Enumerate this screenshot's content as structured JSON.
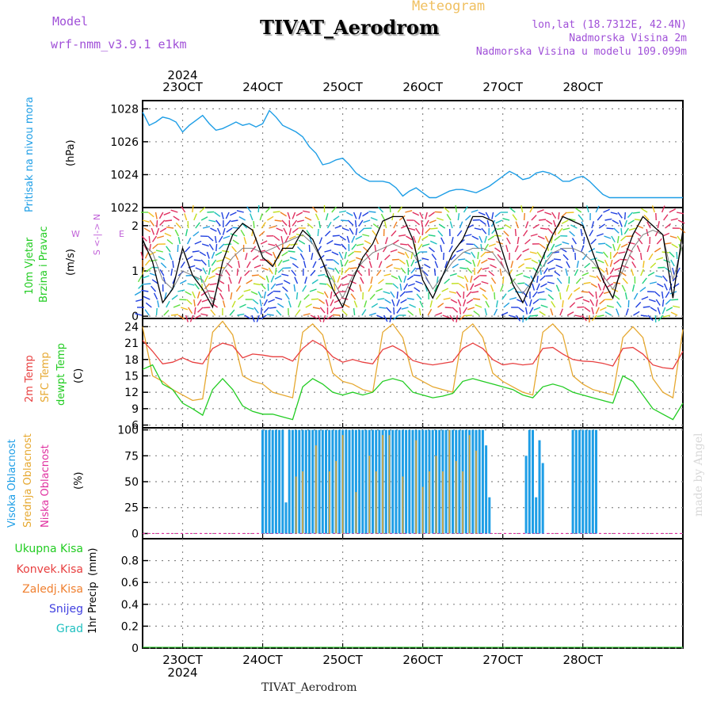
{
  "header": {
    "model_label": "Model",
    "model_name": "wrf-nmm_v3.9.1 e1km",
    "station_title": "TIVAT_Aerodrom",
    "meteogram_label": "Meteogram",
    "lonlat": "lon,lat (18.7312E, 42.4N)",
    "elevation": "Nadmorska Visina 2m",
    "model_elevation": "Nadmorska Visina u modelu 109.099m"
  },
  "footer": {
    "station": "TIVAT_Aerodrom",
    "credit": "made by Angel"
  },
  "time_axis": {
    "year": "2024",
    "dates": [
      "23OCT",
      "24OCT",
      "25OCT",
      "26OCT",
      "27OCT",
      "28OCT"
    ],
    "start_hour": 0,
    "end_hour": 162
  },
  "colors": {
    "pressure": "#1e9ee6",
    "wind_speed": "#000000",
    "gust": "#e6304a",
    "temp2m": "#e84040",
    "sfc_temp": "#e6a830",
    "dewpt": "#22cc22",
    "high_cloud": "#1e9ee6",
    "mid_cloud": "#e6a830",
    "low_cloud": "#e030a0",
    "total_precip": "#22cc22",
    "conv_precip": "#e84040",
    "frozen_precip": "#f08030",
    "snow": "#4040e0",
    "hail": "#20c0c0"
  },
  "chart_data": [
    {
      "type": "line",
      "title": "",
      "ylabel": "Pritisak na nivou mora",
      "units": "(hPa)",
      "ylim": [
        1022,
        1028.5
      ],
      "yticks": [
        1022,
        1024,
        1026,
        1028
      ],
      "x": [
        0,
        2,
        4,
        6,
        8,
        10,
        12,
        14,
        16,
        18,
        20,
        22,
        24,
        26,
        28,
        30,
        32,
        34,
        36,
        38,
        40,
        42,
        44,
        46,
        48,
        50,
        52,
        54,
        56,
        58,
        60,
        62,
        64,
        66,
        68,
        70,
        72,
        74,
        76,
        78,
        80,
        82,
        84,
        86,
        88,
        90,
        92,
        94,
        96,
        98,
        100,
        102,
        104,
        106,
        108,
        110,
        112,
        114,
        116,
        118,
        120,
        122,
        124,
        126,
        128,
        130,
        132,
        134,
        136,
        138,
        140,
        142,
        144,
        146,
        148,
        150,
        152,
        154,
        156,
        158,
        160,
        162
      ],
      "series": [
        {
          "name": "",
          "values": [
            1027.8,
            1027.0,
            1027.2,
            1027.5,
            1027.4,
            1027.2,
            1026.6,
            1027.0,
            1027.3,
            1027.6,
            1027.1,
            1026.7,
            1026.8,
            1027.0,
            1027.2,
            1027.0,
            1027.1,
            1026.9,
            1027.1,
            1027.9,
            1027.5,
            1027.0,
            1026.8,
            1026.6,
            1026.3,
            1025.7,
            1025.3,
            1024.6,
            1024.7,
            1024.9,
            1025.0,
            1024.6,
            1024.1,
            1023.8,
            1023.6,
            1023.6,
            1023.6,
            1023.5,
            1023.2,
            1022.7,
            1023.0,
            1023.2,
            1022.9,
            1022.6,
            1022.6,
            1022.8,
            1023.0,
            1023.1,
            1023.1,
            1023.0,
            1022.9,
            1023.1,
            1023.3,
            1023.6,
            1023.9,
            1024.2,
            1024.0,
            1023.7,
            1023.8,
            1024.1,
            1024.2,
            1024.1,
            1023.9,
            1023.6,
            1023.6,
            1023.8,
            1023.9,
            1023.6,
            1023.2,
            1022.8,
            1022.6,
            1022.6,
            1022.6,
            1022.6,
            1022.6,
            1022.6,
            1022.6,
            1022.6,
            1022.6,
            1022.6,
            1022.6,
            1022.6
          ]
        }
      ]
    },
    {
      "type": "line",
      "ylabel": "10m Vjetar Brzina i Pravac",
      "units": "(m/s)",
      "ylim": [
        -0.05,
        2.4
      ],
      "yticks": [
        0,
        1,
        2
      ],
      "compass": {
        "n": "N",
        "s": "S",
        "e": "E",
        "w": "W"
      },
      "x": [
        0,
        3,
        6,
        9,
        12,
        15,
        18,
        21,
        24,
        27,
        30,
        33,
        36,
        39,
        42,
        45,
        48,
        51,
        54,
        57,
        60,
        63,
        66,
        69,
        72,
        75,
        78,
        81,
        84,
        87,
        90,
        93,
        96,
        99,
        102,
        105,
        108,
        111,
        114,
        117,
        120,
        123,
        126,
        129,
        132,
        135,
        138,
        141,
        144,
        147,
        150,
        153,
        156,
        159,
        162
      ],
      "series": [
        {
          "name": "",
          "values": [
            1.7,
            1.2,
            0.3,
            0.6,
            1.5,
            0.9,
            0.6,
            0.2,
            1.2,
            1.8,
            2.05,
            1.9,
            1.3,
            1.1,
            1.5,
            1.5,
            1.9,
            1.7,
            1.2,
            0.6,
            0.2,
            0.8,
            1.3,
            1.6,
            2.1,
            2.2,
            2.2,
            1.7,
            0.8,
            0.4,
            0.9,
            1.4,
            1.7,
            2.2,
            2.2,
            2.1,
            1.4,
            0.7,
            0.3,
            0.8,
            1.3,
            1.8,
            2.2,
            2.1,
            2.0,
            1.4,
            0.8,
            0.4,
            1.2,
            1.8,
            2.2,
            2.0,
            1.8,
            0.4,
            1.9
          ]
        },
        {
          "name": "",
          "values": [
            1.6,
            1.4,
            0.8,
            0.6,
            1.0,
            0.9,
            0.8,
            0.3,
            1.0,
            1.3,
            1.5,
            1.5,
            1.4,
            1.5,
            1.6,
            1.7,
            1.8,
            1.6,
            1.2,
            0.8,
            0.4,
            0.9,
            1.2,
            1.4,
            1.5,
            1.6,
            1.5,
            1.4,
            1.0,
            0.6,
            0.9,
            1.2,
            1.4,
            1.5,
            1.5,
            1.4,
            1.1,
            0.8,
            0.5,
            0.8,
            1.1,
            1.4,
            1.5,
            1.5,
            1.4,
            1.2,
            0.9,
            0.6,
            1.0,
            1.5,
            1.8,
            1.9,
            1.8,
            0.8,
            1.6
          ]
        }
      ]
    },
    {
      "type": "line",
      "ylabel": "2m Temp / SFC Temp / dewpt Temp",
      "units": "(C)",
      "ylim": [
        5.5,
        25.5
      ],
      "yticks": [
        6,
        9,
        12,
        15,
        18,
        21,
        24
      ],
      "x": [
        0,
        3,
        6,
        9,
        12,
        15,
        18,
        21,
        24,
        27,
        30,
        33,
        36,
        39,
        42,
        45,
        48,
        51,
        54,
        57,
        60,
        63,
        66,
        69,
        72,
        75,
        78,
        81,
        84,
        87,
        90,
        93,
        96,
        99,
        102,
        105,
        108,
        111,
        114,
        117,
        120,
        123,
        126,
        129,
        132,
        135,
        138,
        141,
        144,
        147,
        150,
        153,
        156,
        159,
        162
      ],
      "series": [
        {
          "name": "2m Temp",
          "values": [
            21.5,
            19.5,
            17.2,
            17.5,
            18.3,
            17.5,
            17.2,
            20.0,
            21.0,
            20.5,
            18.3,
            19.0,
            18.8,
            18.5,
            18.5,
            17.7,
            20.0,
            21.5,
            20.5,
            18.5,
            17.5,
            18.0,
            17.5,
            17.2,
            19.8,
            20.5,
            19.5,
            17.8,
            17.3,
            17.0,
            17.3,
            17.6,
            20.0,
            21.0,
            20.0,
            18.0,
            17.0,
            17.3,
            17.0,
            17.2,
            20.0,
            20.2,
            19.0,
            18.0,
            17.7,
            17.6,
            17.3,
            16.8,
            20.0,
            20.2,
            19.0,
            17.0,
            16.5,
            16.3,
            19.5
          ]
        },
        {
          "name": "SFC Temp",
          "values": [
            24.0,
            15.0,
            14.0,
            12.5,
            11.5,
            10.5,
            10.8,
            23.0,
            25.0,
            22.5,
            15.0,
            14.0,
            13.5,
            12.0,
            11.5,
            11.0,
            23.0,
            24.5,
            22.5,
            15.5,
            14.0,
            13.5,
            12.5,
            12.0,
            23.0,
            24.5,
            22.0,
            15.0,
            14.0,
            13.0,
            12.5,
            12.0,
            23.0,
            24.5,
            22.0,
            15.5,
            14.0,
            13.0,
            12.0,
            11.5,
            23.0,
            24.5,
            22.5,
            15.0,
            13.5,
            12.5,
            12.0,
            11.5,
            22.0,
            24.0,
            22.0,
            14.5,
            12.0,
            11.0,
            23.5
          ]
        },
        {
          "name": "dewpt Temp",
          "values": [
            16.2,
            17.0,
            13.5,
            12.5,
            10.0,
            9.0,
            7.8,
            12.5,
            14.5,
            12.5,
            9.5,
            8.5,
            8.0,
            8.0,
            7.5,
            7.0,
            13.0,
            14.5,
            13.5,
            12.0,
            11.5,
            12.0,
            11.5,
            12.0,
            14.0,
            14.5,
            14.0,
            12.0,
            11.5,
            11.0,
            11.3,
            11.8,
            14.0,
            14.5,
            14.0,
            13.5,
            13.0,
            12.5,
            11.5,
            11.0,
            13.0,
            13.5,
            13.0,
            12.0,
            11.5,
            11.0,
            10.5,
            10.0,
            15.0,
            14.0,
            11.5,
            9.0,
            8.0,
            7.0,
            10.0
          ]
        }
      ]
    },
    {
      "type": "bar",
      "ylabel": "Visoka Oblacnost / Srednja Oblacnost / Niska Oblacnost",
      "units": "(%)",
      "ylim": [
        -5,
        102
      ],
      "yticks": [
        0,
        25,
        50,
        75,
        100
      ],
      "high_cloud": {
        "x": [
          36,
          37,
          38,
          39,
          40,
          41,
          42,
          43,
          44,
          45,
          46,
          47,
          48,
          49,
          50,
          51,
          52,
          53,
          54,
          55,
          56,
          57,
          58,
          59,
          60,
          61,
          62,
          63,
          64,
          65,
          66,
          67,
          68,
          69,
          70,
          71,
          72,
          73,
          74,
          75,
          76,
          77,
          78,
          79,
          80,
          81,
          82,
          83,
          84,
          85,
          86,
          87,
          88,
          89,
          90,
          91,
          92,
          93,
          94,
          95,
          96,
          97,
          98,
          99,
          100,
          101,
          102,
          103,
          104,
          115,
          116,
          117,
          118,
          119,
          120,
          121,
          122,
          129,
          130,
          131,
          132,
          133,
          134,
          135,
          136
        ],
        "values": [
          100,
          100,
          100,
          100,
          100,
          100,
          100,
          30,
          100,
          100,
          100,
          100,
          100,
          100,
          100,
          100,
          100,
          100,
          100,
          100,
          100,
          100,
          100,
          100,
          100,
          100,
          100,
          100,
          100,
          100,
          100,
          100,
          100,
          100,
          100,
          100,
          100,
          100,
          100,
          100,
          100,
          100,
          100,
          100,
          100,
          100,
          100,
          100,
          100,
          100,
          100,
          100,
          100,
          100,
          100,
          100,
          100,
          100,
          100,
          100,
          100,
          100,
          100,
          100,
          100,
          100,
          100,
          85,
          35,
          75,
          100,
          100,
          35,
          90,
          68,
          0,
          0,
          100,
          100,
          100,
          100,
          100,
          100,
          100,
          100
        ]
      },
      "mid_cloud": {
        "x": [
          46,
          48,
          52,
          56,
          58,
          60,
          64,
          68,
          70,
          72,
          74,
          78,
          82,
          84,
          86,
          88,
          90,
          92,
          94,
          96,
          98,
          100
        ],
        "values": [
          55,
          60,
          85,
          60,
          70,
          95,
          40,
          75,
          60,
          95,
          95,
          55,
          90,
          45,
          60,
          75,
          60,
          100,
          70,
          60,
          95,
          80
        ]
      },
      "low_cloud": {
        "x": [],
        "values": []
      }
    },
    {
      "type": "line",
      "ylabel": "1hr Precip",
      "units": "(mm)",
      "ylim": [
        0,
        1.0
      ],
      "yticks": [
        0,
        0.2,
        0.4,
        0.6,
        0.8
      ],
      "legend": [
        "Ukupna Kisa",
        "Konvek.Kisa",
        "Zaledj.Kisa",
        "Snijeg",
        "Grad"
      ],
      "series": []
    }
  ]
}
